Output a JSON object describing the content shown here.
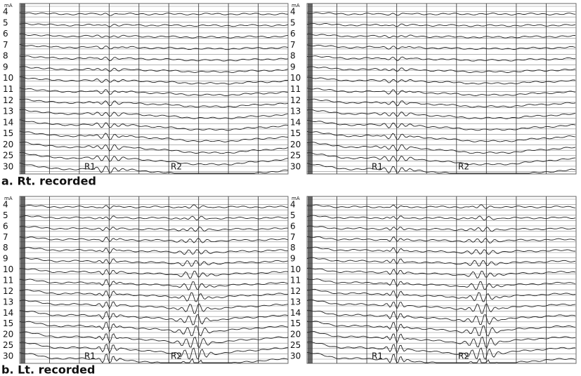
{
  "panels": [
    {
      "unit": "mA",
      "levels": [
        "4",
        "5",
        "6",
        "7",
        "8",
        "9",
        "10",
        "11",
        "12",
        "13",
        "14",
        "15",
        "20",
        "25",
        "30"
      ],
      "markers": [
        "R1",
        "R2"
      ]
    },
    {
      "unit": "mA",
      "levels": [
        "4",
        "5",
        "6",
        "7",
        "8",
        "9",
        "10",
        "11",
        "12",
        "13",
        "14",
        "15",
        "20",
        "25",
        "30"
      ],
      "markers": [
        "R1",
        "R2"
      ]
    },
    {
      "unit": "mA",
      "levels": [
        "4",
        "5",
        "6",
        "7",
        "8",
        "9",
        "10",
        "11",
        "12",
        "13",
        "14",
        "15",
        "20",
        "25",
        "30"
      ],
      "markers": [
        "R1",
        "R2"
      ]
    },
    {
      "unit": "mA",
      "levels": [
        "4",
        "5",
        "6",
        "7",
        "8",
        "9",
        "10",
        "11",
        "12",
        "13",
        "14",
        "15",
        "20",
        "25",
        "30"
      ],
      "markers": [
        "R1",
        "R2"
      ]
    }
  ],
  "captions": [
    "a. Rt. recorded",
    "b. Lt. recorded"
  ]
}
